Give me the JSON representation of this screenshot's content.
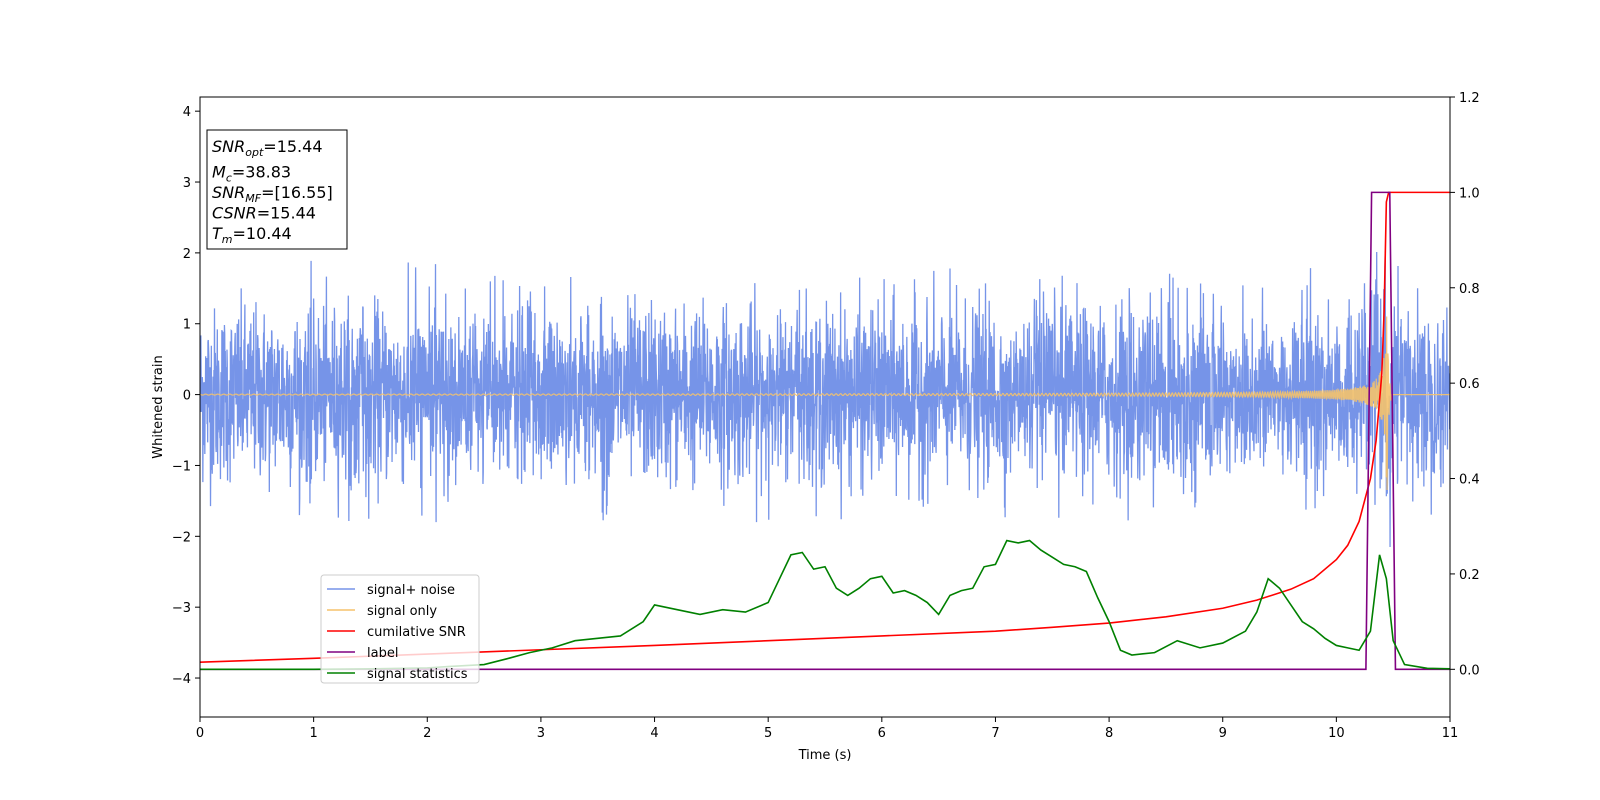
{
  "chart_data": {
    "type": "line",
    "xlabel": "Time (s)",
    "ylabel": "Whitened strain",
    "xlim": [
      0,
      11
    ],
    "ylim_left": [
      -4.55,
      4.2
    ],
    "ylim_right": [
      -0.1,
      1.2
    ],
    "x_ticks": [
      0,
      1,
      2,
      3,
      4,
      5,
      6,
      7,
      8,
      9,
      10,
      11
    ],
    "y_ticks_left": [
      -4,
      -3,
      -2,
      -1,
      0,
      1,
      2,
      3,
      4
    ],
    "y_ticks_right": [
      0.0,
      0.2,
      0.4,
      0.6,
      0.8,
      1.0,
      1.2
    ],
    "grid": false,
    "legend_position": "lower-left",
    "info_box": {
      "lines": [
        {
          "var": "SNR",
          "sub": "opt",
          "value": "=15.44"
        },
        {
          "var": "M",
          "sub": "c",
          "value": "=38.83"
        },
        {
          "var": "SNR",
          "sub": "MF",
          "value": "=[16.55]"
        },
        {
          "var": "CSNR",
          "sub": "",
          "value": "=15.44"
        },
        {
          "var": "T",
          "sub": "m",
          "value": "=10.44"
        }
      ]
    },
    "series": [
      {
        "name": "signal+ noise",
        "color": "#7694e8",
        "axis": "left",
        "kind": "noise",
        "approx_amplitude": 0.6,
        "approx_peak_range": [
          -1.8,
          1.9
        ]
      },
      {
        "name": "signal only",
        "color": "#f5c26b",
        "axis": "left",
        "kind": "chirp",
        "merger_time": 10.44,
        "peak_amplitude": 2.9
      },
      {
        "name": "cumilative SNR",
        "color": "#ff0000",
        "axis": "right",
        "x": [
          0,
          1,
          2,
          3,
          4,
          5,
          6,
          7,
          7.5,
          8,
          8.5,
          9,
          9.3,
          9.6,
          9.8,
          10.0,
          10.1,
          10.2,
          10.3,
          10.35,
          10.4,
          10.42,
          10.44,
          10.46,
          11
        ],
        "y": [
          0.015,
          0.023,
          0.032,
          0.041,
          0.05,
          0.06,
          0.07,
          0.08,
          0.088,
          0.097,
          0.11,
          0.128,
          0.145,
          0.168,
          0.19,
          0.23,
          0.26,
          0.31,
          0.4,
          0.48,
          0.62,
          0.75,
          0.98,
          1.0,
          1.0
        ]
      },
      {
        "name": "label",
        "color": "#800080",
        "axis": "right",
        "x": [
          0,
          10.26,
          10.31,
          10.47,
          10.52,
          11
        ],
        "y": [
          0,
          0,
          1,
          1,
          0,
          0
        ]
      },
      {
        "name": "signal statistics",
        "color": "#008000",
        "axis": "right",
        "x": [
          0,
          1,
          1.5,
          2,
          2.2,
          2.5,
          2.7,
          2.9,
          3.1,
          3.3,
          3.5,
          3.7,
          3.9,
          4.0,
          4.2,
          4.4,
          4.6,
          4.8,
          5.0,
          5.1,
          5.2,
          5.3,
          5.4,
          5.5,
          5.6,
          5.7,
          5.8,
          5.9,
          6.0,
          6.1,
          6.2,
          6.3,
          6.4,
          6.5,
          6.6,
          6.7,
          6.8,
          6.9,
          7.0,
          7.1,
          7.2,
          7.3,
          7.4,
          7.5,
          7.6,
          7.7,
          7.8,
          7.9,
          8.0,
          8.1,
          8.2,
          8.4,
          8.6,
          8.8,
          9.0,
          9.2,
          9.3,
          9.4,
          9.5,
          9.6,
          9.7,
          9.8,
          9.9,
          10.0,
          10.1,
          10.2,
          10.3,
          10.38,
          10.44,
          10.5,
          10.6,
          10.8,
          11
        ],
        "y": [
          0,
          0,
          0.001,
          0.003,
          0.006,
          0.01,
          0.022,
          0.035,
          0.045,
          0.06,
          0.065,
          0.07,
          0.1,
          0.135,
          0.125,
          0.115,
          0.125,
          0.12,
          0.14,
          0.19,
          0.24,
          0.245,
          0.21,
          0.215,
          0.17,
          0.155,
          0.17,
          0.19,
          0.195,
          0.16,
          0.165,
          0.155,
          0.14,
          0.115,
          0.155,
          0.165,
          0.17,
          0.215,
          0.22,
          0.27,
          0.265,
          0.27,
          0.25,
          0.235,
          0.22,
          0.215,
          0.205,
          0.15,
          0.1,
          0.04,
          0.03,
          0.035,
          0.06,
          0.045,
          0.055,
          0.08,
          0.12,
          0.19,
          0.17,
          0.135,
          0.1,
          0.085,
          0.065,
          0.05,
          0.045,
          0.04,
          0.08,
          0.24,
          0.19,
          0.06,
          0.01,
          0.002,
          0.001
        ]
      }
    ]
  }
}
